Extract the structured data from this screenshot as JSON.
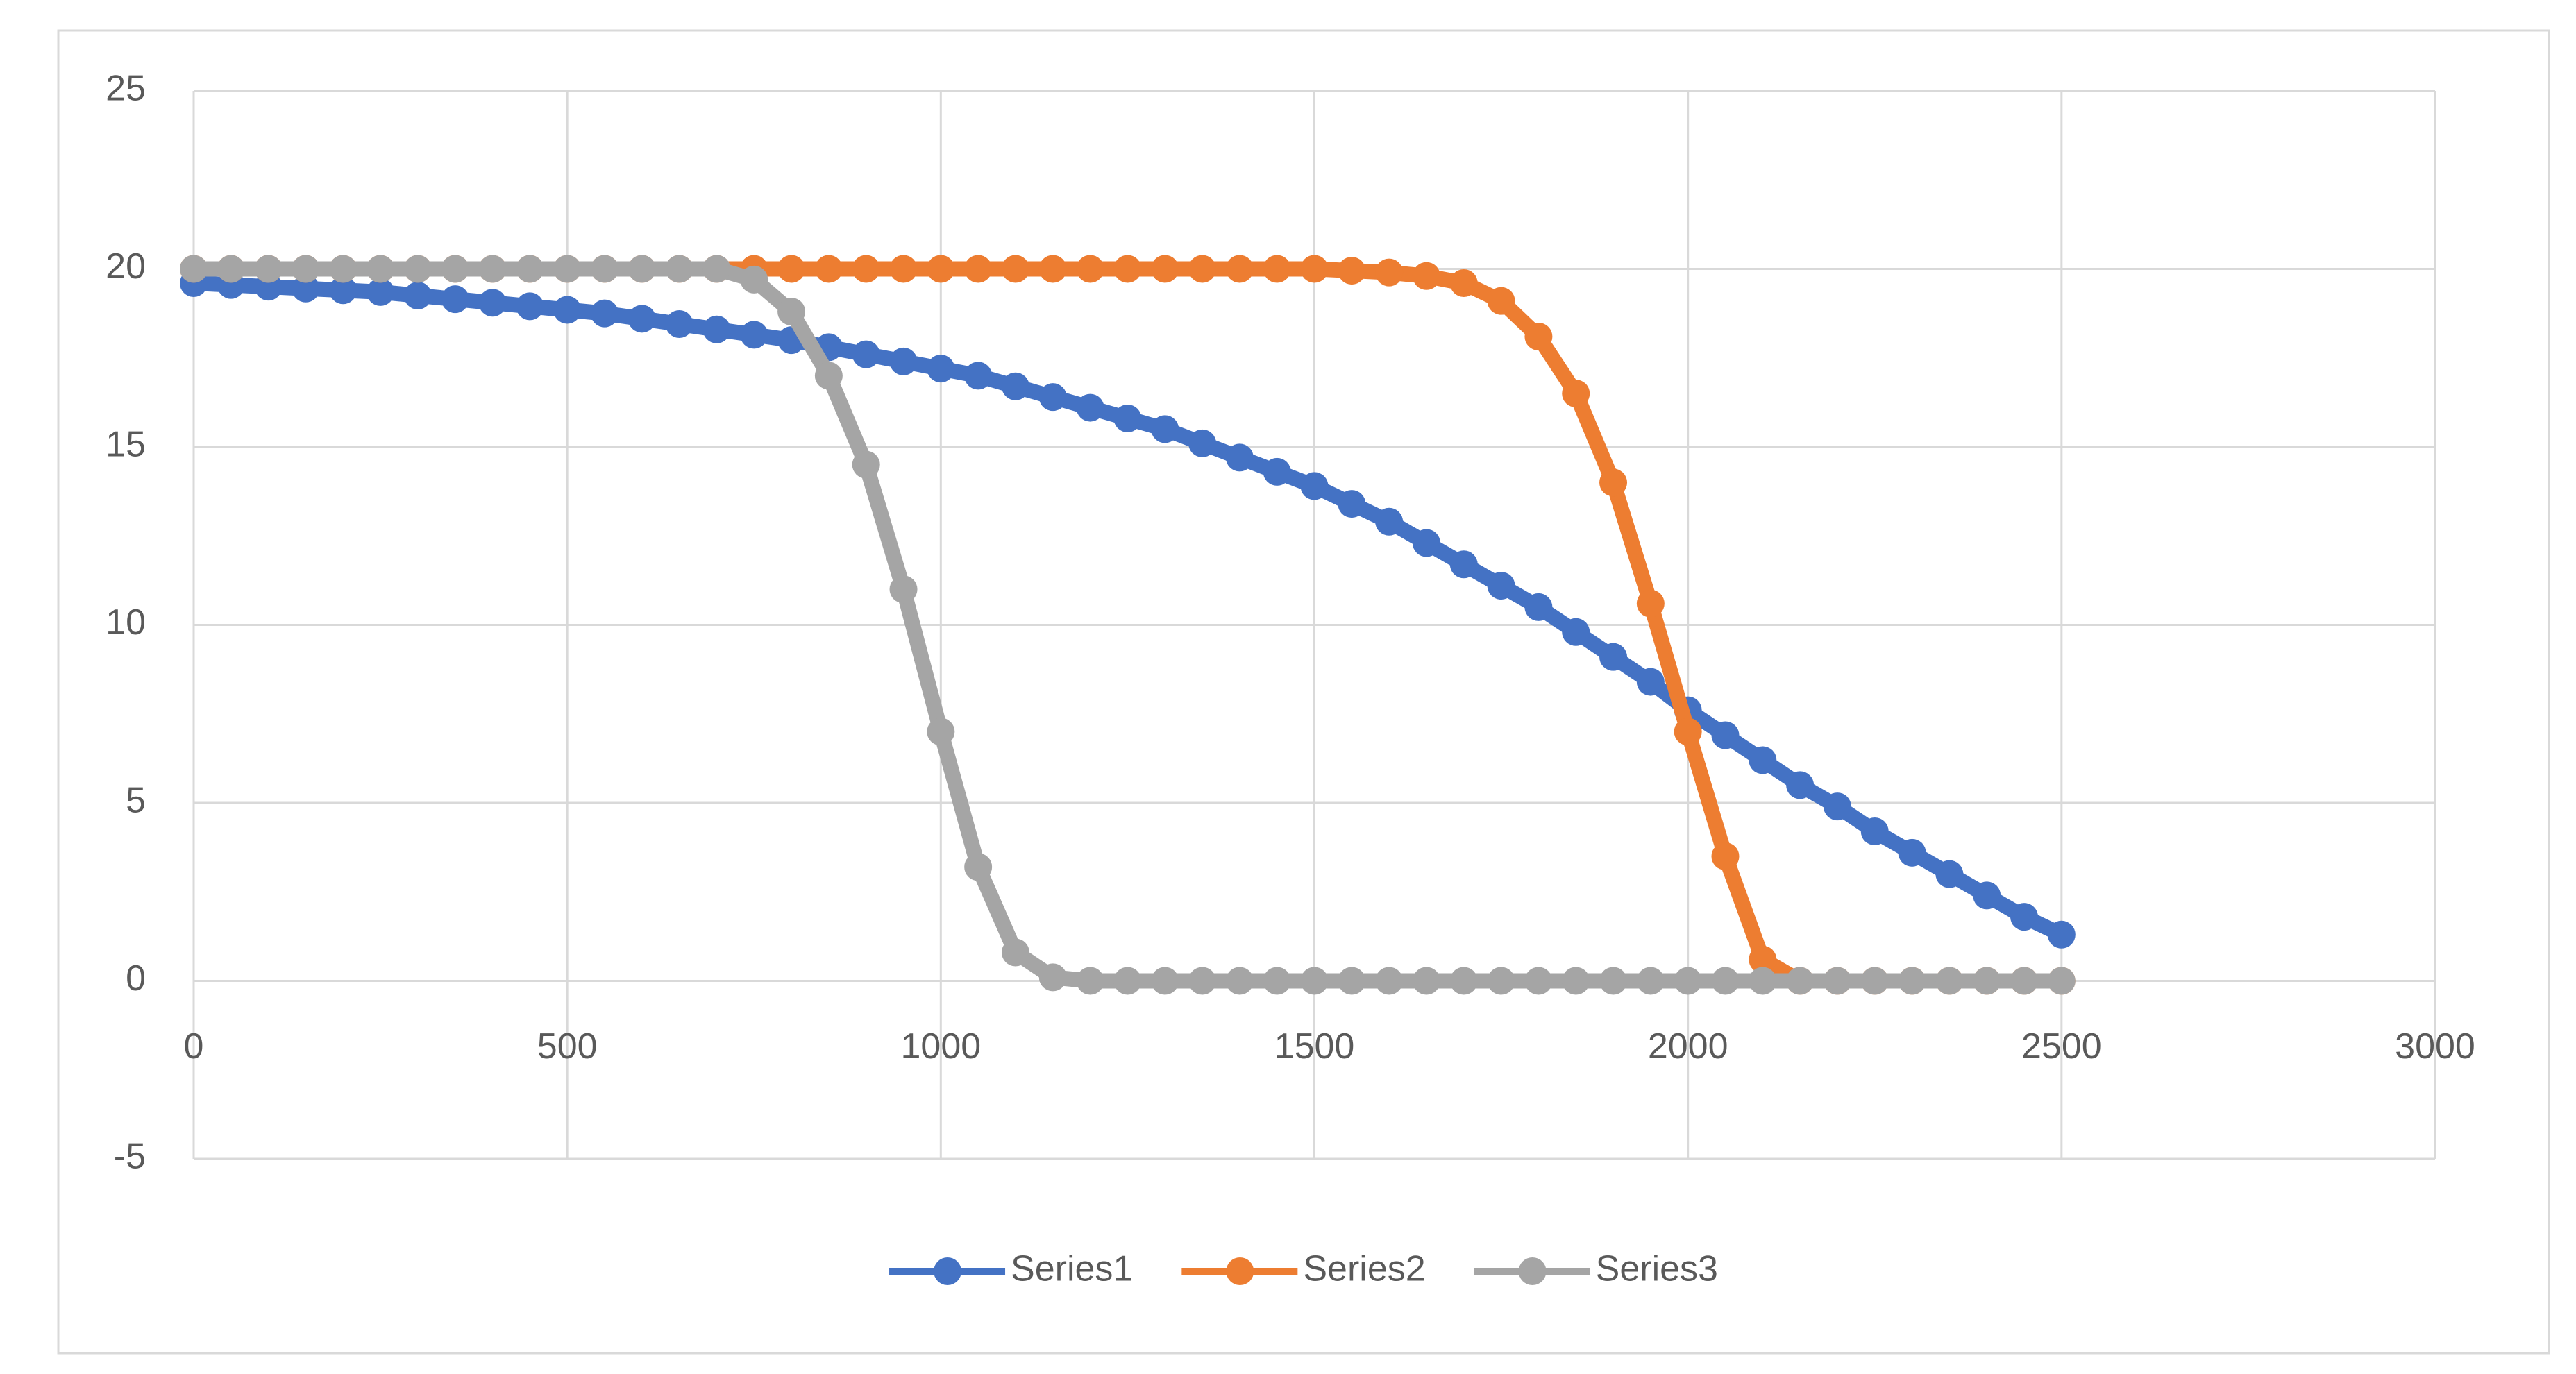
{
  "chart_data": {
    "type": "line",
    "x": [
      0,
      50,
      100,
      150,
      200,
      250,
      300,
      350,
      400,
      450,
      500,
      550,
      600,
      650,
      700,
      750,
      800,
      850,
      900,
      950,
      1000,
      1050,
      1100,
      1150,
      1200,
      1250,
      1300,
      1350,
      1400,
      1450,
      1500,
      1550,
      1600,
      1650,
      1700,
      1750,
      1800,
      1850,
      1900,
      1950,
      2000,
      2050,
      2100,
      2150,
      2200,
      2250,
      2300,
      2350,
      2400,
      2450,
      2500
    ],
    "series": [
      {
        "name": "Series1",
        "color": "#4472c4",
        "values": [
          19.6,
          19.55,
          19.5,
          19.45,
          19.4,
          19.35,
          19.25,
          19.15,
          19.05,
          18.95,
          18.85,
          18.75,
          18.6,
          18.45,
          18.3,
          18.15,
          18.0,
          17.8,
          17.6,
          17.4,
          17.2,
          17.0,
          16.7,
          16.4,
          16.1,
          15.8,
          15.5,
          15.1,
          14.7,
          14.3,
          13.9,
          13.4,
          12.9,
          12.3,
          11.7,
          11.1,
          10.5,
          9.8,
          9.1,
          8.4,
          7.6,
          6.9,
          6.2,
          5.5,
          4.9,
          4.2,
          3.6,
          3.0,
          2.4,
          1.8,
          1.3
        ]
      },
      {
        "name": "Series2",
        "color": "#ed7d31",
        "values": [
          20,
          20,
          20,
          20,
          20,
          20,
          20,
          20,
          20,
          20,
          20,
          20,
          20,
          20,
          20,
          20,
          20,
          20,
          20,
          20,
          20,
          20,
          20,
          20,
          20,
          20,
          20,
          20,
          20,
          20,
          20,
          19.95,
          19.9,
          19.8,
          19.6,
          19.1,
          18.1,
          16.5,
          14,
          10.6,
          7,
          3.5,
          0.6,
          0,
          0,
          0,
          0,
          0,
          0,
          0,
          0
        ]
      },
      {
        "name": "Series3",
        "color": "#a5a5a5",
        "values": [
          20,
          20,
          20,
          20,
          20,
          20,
          20,
          20,
          20,
          20,
          20,
          20,
          20,
          20,
          20,
          19.7,
          18.8,
          17,
          14.5,
          11,
          7,
          3.2,
          0.8,
          0.1,
          0,
          0,
          0,
          0,
          0,
          0,
          0,
          0,
          0,
          0,
          0,
          0,
          0,
          0,
          0,
          0,
          0,
          0,
          0,
          0,
          0,
          0,
          0,
          0,
          0,
          0,
          0
        ]
      }
    ],
    "xlim": [
      0,
      3000
    ],
    "xticks": [
      0,
      500,
      1000,
      1500,
      2000,
      2500,
      3000
    ],
    "ylim": [
      -5,
      25
    ],
    "yticks": [
      -5,
      0,
      5,
      10,
      15,
      20,
      25
    ],
    "grid": true,
    "legend": "bottom"
  }
}
